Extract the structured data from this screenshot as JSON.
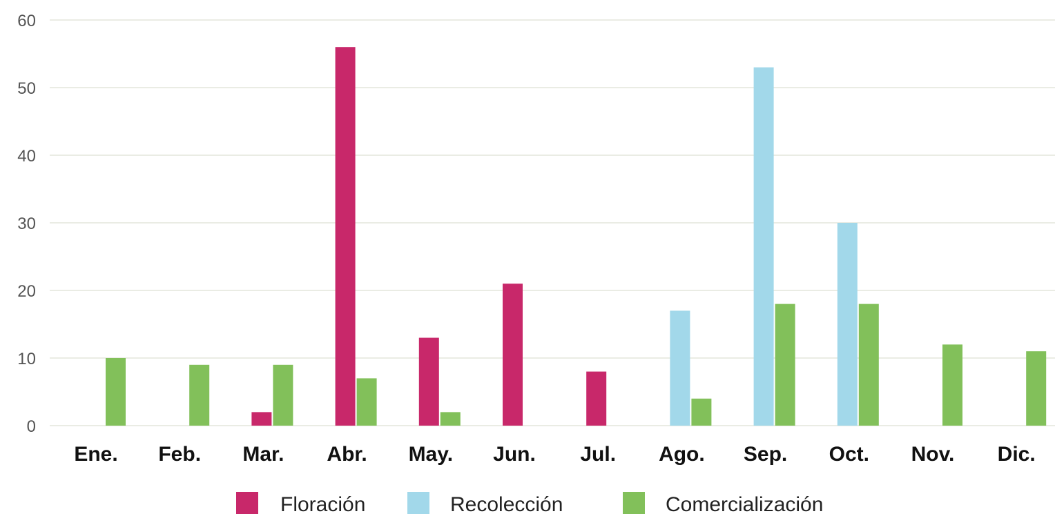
{
  "chart_data": {
    "type": "bar",
    "title": "",
    "xlabel": "",
    "ylabel": "",
    "ylim": [
      0,
      60
    ],
    "yticks": [
      0,
      10,
      20,
      30,
      40,
      50,
      60
    ],
    "grid": "horizontal",
    "legend_position": "bottom",
    "categories": [
      "Ene.",
      "Feb.",
      "Mar.",
      "Abr.",
      "May.",
      "Jun.",
      "Jul.",
      "Ago.",
      "Sep.",
      "Oct.",
      "Nov.",
      "Dic."
    ],
    "series": [
      {
        "name": "Floración",
        "color": "#c8286a",
        "values": [
          0,
          0,
          2,
          56,
          13,
          21,
          8,
          0,
          0,
          0,
          0,
          0
        ]
      },
      {
        "name": "Recolección",
        "color": "#a2d8ea",
        "values": [
          0,
          0,
          0,
          0,
          0,
          0,
          0,
          17,
          53,
          30,
          0,
          0
        ]
      },
      {
        "name": "Comercialización",
        "color": "#82c05a",
        "values": [
          10,
          9,
          9,
          7,
          2,
          0,
          0,
          4,
          18,
          18,
          12,
          11
        ]
      }
    ]
  }
}
